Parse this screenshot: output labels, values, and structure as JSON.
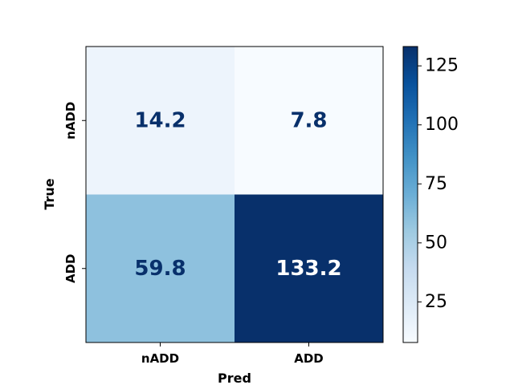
{
  "chart_data": {
    "type": "heatmap",
    "x_categories": [
      "nADD",
      "ADD"
    ],
    "y_categories": [
      "nADD",
      "ADD"
    ],
    "xlabel": "Pred",
    "ylabel": "True",
    "values": [
      [
        14.2,
        7.8
      ],
      [
        59.8,
        133.2
      ]
    ],
    "cell_labels": [
      [
        "14.2",
        "7.8"
      ],
      [
        "59.8",
        "133.2"
      ]
    ],
    "colormap": "Blues",
    "colorbar": {
      "range": [
        7.8,
        133.2
      ],
      "ticks": [
        25,
        50,
        75,
        100,
        125
      ],
      "tick_labels": [
        "25",
        "50",
        "75",
        "100",
        "125"
      ]
    },
    "colors": {
      "low": "#f7fbff",
      "high": "#08306b",
      "dark_text": "#08306b",
      "light_text": "#ffffff"
    }
  }
}
